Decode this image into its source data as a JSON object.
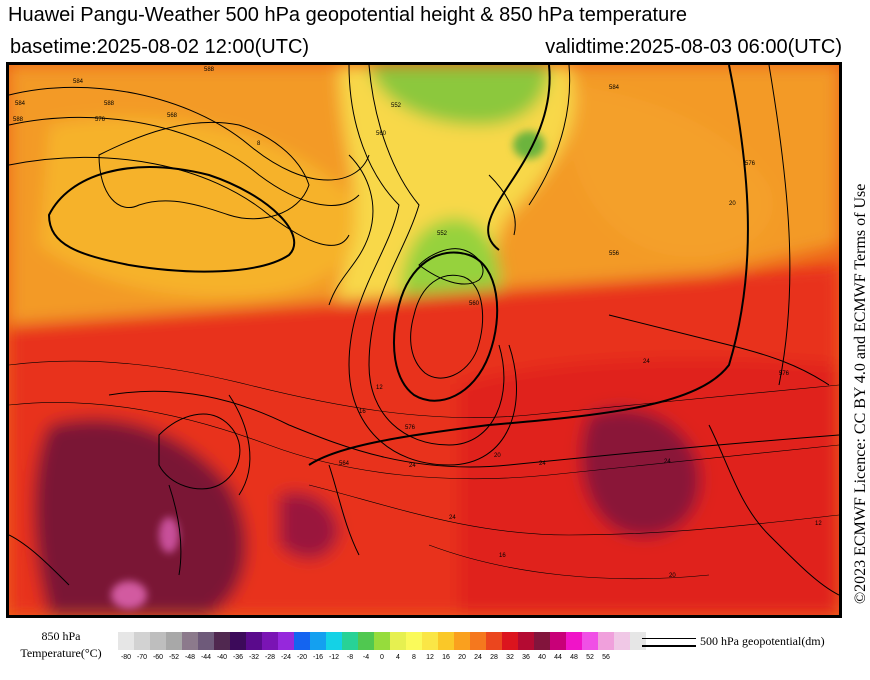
{
  "header": {
    "title": "Huawei Pangu-Weather 500 hPa geopotential height & 850 hPa temperature",
    "basetime": "basetime:2025-08-02 12:00(UTC)",
    "validtime": "validtime:2025-08-03 06:00(UTC)"
  },
  "licence": "©2023 ECMWF Licence: CC BY 4.0 and ECMWF Terms of Use",
  "legend": {
    "label_line1": "850 hPa",
    "label_line2": "Temperature(°C)",
    "ticks": [
      "-80",
      "-70",
      "-60",
      "-52",
      "-48",
      "-44",
      "-40",
      "-36",
      "-32",
      "-28",
      "-24",
      "-20",
      "-16",
      "-12",
      "-8",
      "-4",
      "0",
      "4",
      "8",
      "12",
      "16",
      "20",
      "24",
      "28",
      "32",
      "36",
      "40",
      "44",
      "48",
      "52",
      "56"
    ],
    "colors": [
      "#e6e6e6",
      "#d2d2d2",
      "#bebebe",
      "#a8a8a8",
      "#8c7a8c",
      "#6e5a7a",
      "#502850",
      "#3c0a5a",
      "#5a0a8c",
      "#7a14b4",
      "#9628dc",
      "#1464f0",
      "#14a0f0",
      "#14d2e6",
      "#28d296",
      "#50c850",
      "#96dc3c",
      "#e6f050",
      "#fafa5a",
      "#fae646",
      "#fac828",
      "#faa01e",
      "#f5781e",
      "#eb461e",
      "#dc141e",
      "#b40a32",
      "#82143c",
      "#c80078",
      "#f014c8",
      "#f050e6",
      "#f0a0dc",
      "#f0c8e6",
      "#e6e6e6"
    ],
    "geo_label": "500 hPa geopotential(dm)"
  },
  "map": {
    "contour_labels": [
      "584",
      "588",
      "576",
      "568",
      "560",
      "552",
      "552",
      "556",
      "560",
      "576",
      "564",
      "576",
      "576",
      "584",
      "588",
      "584",
      "588"
    ],
    "isotherm_labels": [
      "8",
      "12",
      "16",
      "20",
      "24",
      "24",
      "24",
      "24",
      "20",
      "24",
      "16",
      "20",
      "12"
    ]
  }
}
